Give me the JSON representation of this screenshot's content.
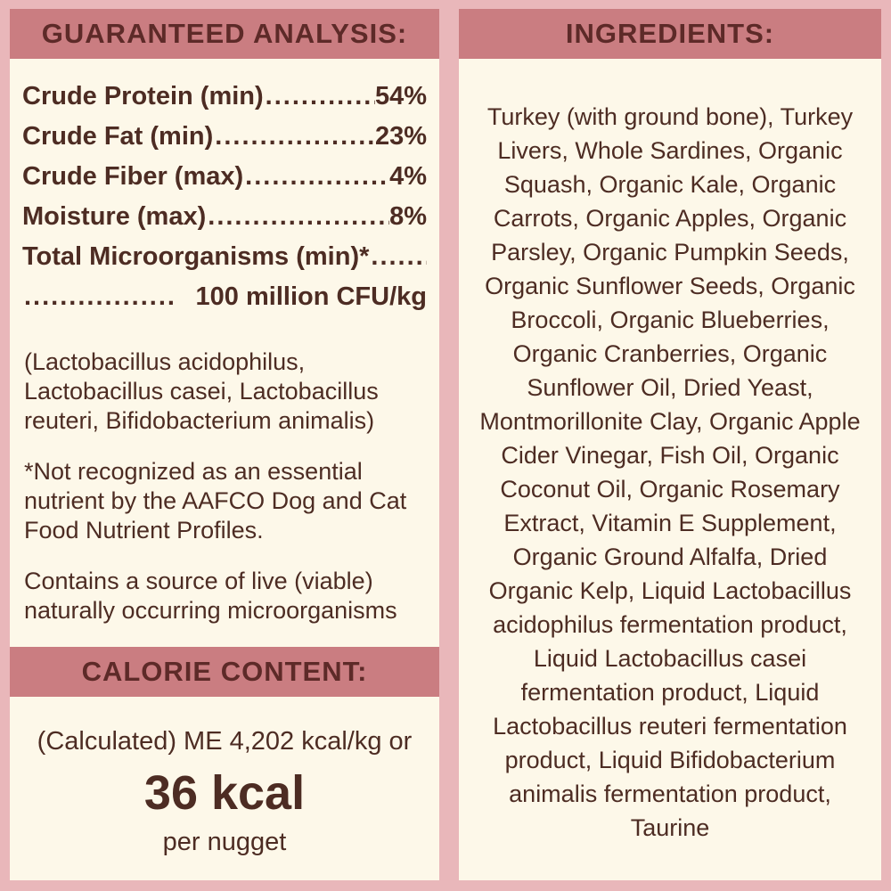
{
  "colors": {
    "background_pink": "#e9b7ba",
    "band_rose": "#ca7d81",
    "panel_cream": "#fdf8e9",
    "body_text_brown": "#4d2c23",
    "band_title_maroon": "#5d2a28"
  },
  "guaranteed_analysis": {
    "title": "GUARANTEED ANALYSIS:",
    "leader_dots": "................................................................",
    "rows": [
      {
        "label": "Crude Protein (min)",
        "value": "54%"
      },
      {
        "label": "Crude Fat (min)",
        "value": "23%"
      },
      {
        "label": "Crude Fiber (max)",
        "value": "4%"
      },
      {
        "label": "Moisture (max)",
        "value": "8%"
      },
      {
        "label": "Total Microorganisms (min)*",
        "value": ""
      },
      {
        "label": "",
        "value": "100 million CFU/kg"
      }
    ],
    "notes": [
      "(Lactobacillus acidophilus, Lactobacillus casei, Lactobacillus reuteri, Bifidobacterium animalis)",
      "*Not recognized as an essential nutrient by the AAFCO Dog and Cat Food Nutrient Profiles.",
      "Contains a source of live (viable) naturally occurring microorganisms"
    ]
  },
  "calorie_content": {
    "title": "CALORIE CONTENT:",
    "me_line": "(Calculated) ME 4,202 kcal/kg or",
    "kcal_value": "36 kcal",
    "per_unit": "per nugget"
  },
  "ingredients": {
    "title": "INGREDIENTS:",
    "text": "Turkey (with ground bone), Turkey Livers,  Whole Sardines, Organic Squash, Organic Kale, Organic Carrots, Organic Apples, Organic Parsley, Organic Pumpkin Seeds, Organic Sunflower Seeds, Organic Broccoli, Organic Blueberries, Organic Cranberries, Organic Sunflower Oil, Dried Yeast, Montmorillonite Clay, Organic Apple Cider Vinegar, Fish Oil, Organic Coconut Oil, Organic Rosemary Extract, Vitamin E Supplement, Organic Ground Alfalfa, Dried Organic Kelp, Liquid Lactobacillus acidophilus fermentation product, Liquid Lactobacillus casei fermentation product, Liquid Lactobacillus reuteri fermentation product, Liquid Bifidobacterium animalis fermentation product, Taurine"
  }
}
